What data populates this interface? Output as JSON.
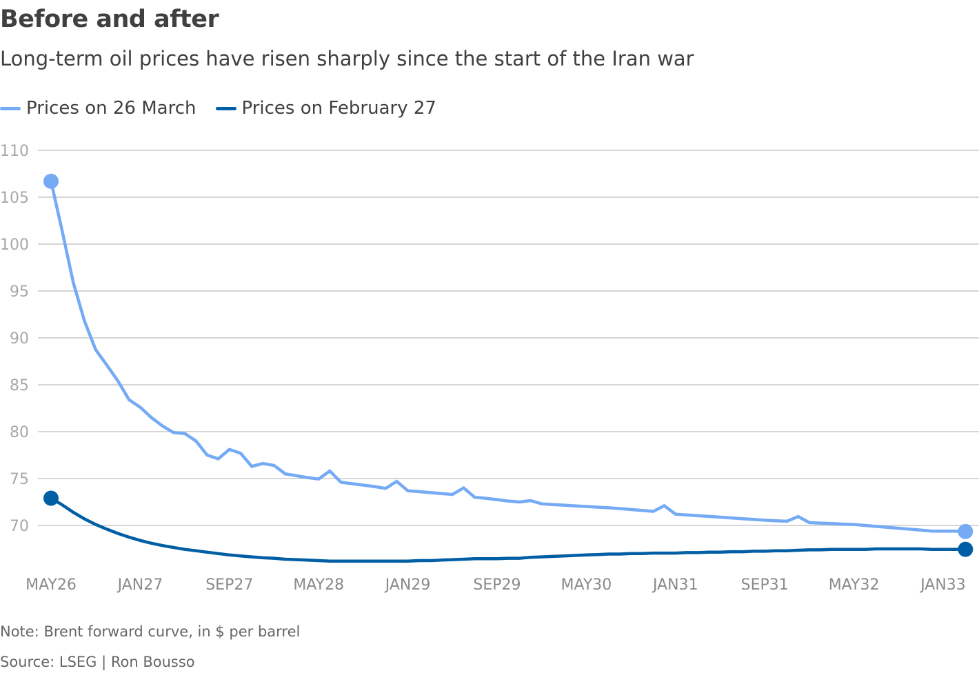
{
  "chart_data": {
    "type": "line",
    "title": "Before and after",
    "subtitle": "Long-term oil prices have risen sharply since the start of the Iran war",
    "xlabel": "",
    "ylabel": "",
    "ylim": [
      65,
      110
    ],
    "yticks": [
      70,
      75,
      80,
      85,
      90,
      95,
      100,
      105,
      110
    ],
    "xtick_labels": [
      "MAY26",
      "JAN27",
      "SEP27",
      "MAY28",
      "JAN29",
      "SEP29",
      "MAY30",
      "JAN31",
      "SEP31",
      "MAY32",
      "JAN33"
    ],
    "xtick_months": [
      "2026-05",
      "2027-01",
      "2027-09",
      "2028-05",
      "2029-01",
      "2029-09",
      "2030-05",
      "2031-01",
      "2031-09",
      "2032-05",
      "2033-01"
    ],
    "grid": true,
    "legend_position": "top-left",
    "x": [
      "2026-05",
      "2026-06",
      "2026-07",
      "2026-08",
      "2026-09",
      "2026-10",
      "2026-11",
      "2026-12",
      "2027-01",
      "2027-02",
      "2027-03",
      "2027-04",
      "2027-05",
      "2027-06",
      "2027-07",
      "2027-08",
      "2027-09",
      "2027-10",
      "2027-11",
      "2027-12",
      "2028-01",
      "2028-02",
      "2028-03",
      "2028-04",
      "2028-05",
      "2028-06",
      "2028-07",
      "2028-08",
      "2028-09",
      "2028-10",
      "2028-11",
      "2028-12",
      "2029-01",
      "2029-02",
      "2029-03",
      "2029-04",
      "2029-05",
      "2029-06",
      "2029-07",
      "2029-08",
      "2029-09",
      "2029-10",
      "2029-11",
      "2029-12",
      "2030-01",
      "2030-02",
      "2030-03",
      "2030-04",
      "2030-05",
      "2030-06",
      "2030-07",
      "2030-08",
      "2030-09",
      "2030-10",
      "2030-11",
      "2030-12",
      "2031-01",
      "2031-02",
      "2031-03",
      "2031-04",
      "2031-05",
      "2031-06",
      "2031-07",
      "2031-08",
      "2031-09",
      "2031-10",
      "2031-11",
      "2031-12",
      "2032-01",
      "2032-02",
      "2032-03",
      "2032-04",
      "2032-05",
      "2032-06",
      "2032-07",
      "2032-08",
      "2032-09",
      "2032-10",
      "2032-11",
      "2032-12",
      "2033-01",
      "2033-02",
      "2033-03"
    ],
    "series": [
      {
        "name": "Prices on 26 March",
        "color": "#75aaf5",
        "values": [
          106.7,
          101.4,
          95.9,
          91.8,
          88.75,
          87.1,
          85.4,
          83.4,
          82.6,
          81.5,
          80.6,
          79.9,
          79.8,
          79.0,
          77.5,
          77.1,
          78.1,
          77.7,
          76.3,
          76.6,
          76.4,
          75.5,
          75.3,
          75.1,
          74.95,
          75.8,
          74.6,
          74.45,
          74.3,
          74.15,
          73.95,
          74.7,
          73.7,
          73.6,
          73.5,
          73.4,
          73.3,
          74.0,
          73.0,
          72.9,
          72.75,
          72.6,
          72.5,
          72.65,
          72.3,
          72.23,
          72.16,
          72.09,
          72.02,
          71.95,
          71.88,
          71.8,
          71.7,
          71.6,
          71.5,
          72.1,
          71.2,
          71.12,
          71.04,
          70.96,
          70.88,
          70.8,
          70.72,
          70.64,
          70.56,
          70.5,
          70.45,
          70.95,
          70.3,
          70.25,
          70.2,
          70.15,
          70.1,
          70.0,
          69.9,
          69.8,
          69.7,
          69.6,
          69.5,
          69.4,
          69.4,
          69.4,
          69.35
        ]
      },
      {
        "name": "Prices on February 27",
        "color": "#005ea5",
        "values": [
          72.9,
          72.2,
          71.4,
          70.7,
          70.1,
          69.6,
          69.15,
          68.75,
          68.4,
          68.1,
          67.85,
          67.65,
          67.45,
          67.3,
          67.15,
          67.0,
          66.85,
          66.75,
          66.65,
          66.55,
          66.5,
          66.4,
          66.35,
          66.3,
          66.25,
          66.2,
          66.2,
          66.2,
          66.2,
          66.2,
          66.2,
          66.2,
          66.2,
          66.25,
          66.25,
          66.3,
          66.35,
          66.4,
          66.45,
          66.45,
          66.45,
          66.5,
          66.5,
          66.6,
          66.65,
          66.7,
          66.75,
          66.8,
          66.85,
          66.9,
          66.95,
          66.95,
          67.0,
          67.0,
          67.05,
          67.05,
          67.05,
          67.1,
          67.1,
          67.15,
          67.15,
          67.2,
          67.2,
          67.25,
          67.25,
          67.3,
          67.3,
          67.35,
          67.4,
          67.4,
          67.45,
          67.45,
          67.45,
          67.45,
          67.5,
          67.5,
          67.5,
          67.5,
          67.5,
          67.45,
          67.45,
          67.45,
          67.45
        ]
      }
    ]
  },
  "notes": {
    "note": "Note: Brent forward curve, in $ per barrel",
    "source": "Source: LSEG | Ron Bousso"
  }
}
